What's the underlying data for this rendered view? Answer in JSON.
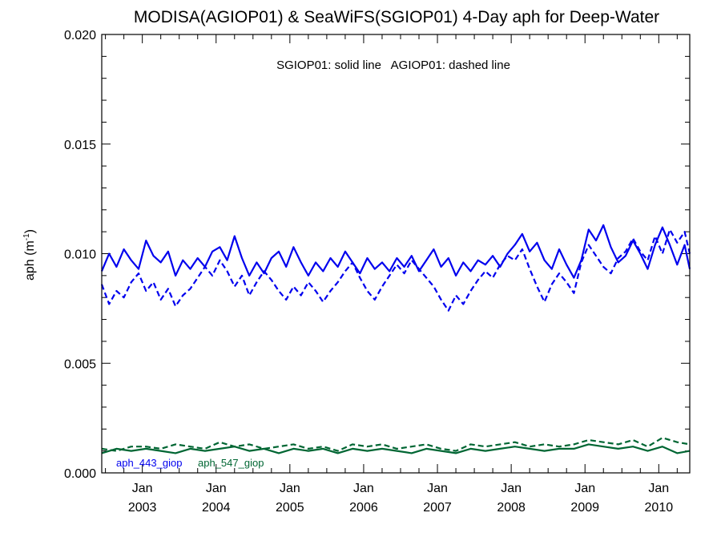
{
  "chart_data": {
    "type": "line",
    "title": "MODISA(AGIOP01) & SeaWiFS(SGIOP01) 4-Day aph for Deep-Water",
    "annotation": "SGIOP01: solid line   AGIOP01: dashed line",
    "ylabel": "aph (m",
    "ylabel_sup": "-1",
    "ylabel_close": ")",
    "xlim": [
      2002.45,
      2010.42
    ],
    "ylim": [
      0.0,
      0.02
    ],
    "yticks": [
      "0.000",
      "0.005",
      "0.010",
      "0.015",
      "0.020"
    ],
    "xticks": [
      {
        "month": "Jan",
        "year": "2003",
        "x": 2003.0
      },
      {
        "month": "Jan",
        "year": "2004",
        "x": 2004.0
      },
      {
        "month": "Jan",
        "year": "2005",
        "x": 2005.0
      },
      {
        "month": "Jan",
        "year": "2006",
        "x": 2006.0
      },
      {
        "month": "Jan",
        "year": "2007",
        "x": 2007.0
      },
      {
        "month": "Jan",
        "year": "2008",
        "x": 2008.0
      },
      {
        "month": "Jan",
        "year": "2009",
        "x": 2009.0
      },
      {
        "month": "Jan",
        "year": "2010",
        "x": 2010.0
      }
    ],
    "legend": [
      {
        "label": "aph_443_giop",
        "color": "#0000ee"
      },
      {
        "label": "aph_547_giop",
        "color": "#006633"
      }
    ],
    "series": [
      {
        "name": "aph_443_giop",
        "sensor": "SGIOP01",
        "style": "solid",
        "color": "#0000ee",
        "x": [
          2002.45,
          2002.55,
          2002.65,
          2002.75,
          2002.85,
          2002.95,
          2003.05,
          2003.15,
          2003.25,
          2003.35,
          2003.45,
          2003.55,
          2003.65,
          2003.75,
          2003.85,
          2003.95,
          2004.05,
          2004.15,
          2004.25,
          2004.35,
          2004.45,
          2004.55,
          2004.65,
          2004.75,
          2004.85,
          2004.95,
          2005.05,
          2005.15,
          2005.25,
          2005.35,
          2005.45,
          2005.55,
          2005.65,
          2005.75,
          2005.85,
          2005.95,
          2006.05,
          2006.15,
          2006.25,
          2006.35,
          2006.45,
          2006.55,
          2006.65,
          2006.75,
          2006.85,
          2006.95,
          2007.05,
          2007.15,
          2007.25,
          2007.35,
          2007.45,
          2007.55,
          2007.65,
          2007.75,
          2007.85,
          2007.95,
          2008.05,
          2008.15,
          2008.25,
          2008.35,
          2008.45,
          2008.55,
          2008.65,
          2008.75,
          2008.85,
          2008.95,
          2009.05,
          2009.15,
          2009.25,
          2009.35,
          2009.45,
          2009.55,
          2009.65,
          2009.75,
          2009.85,
          2009.95,
          2010.05,
          2010.15,
          2010.25,
          2010.35,
          2010.42
        ],
        "y": [
          0.0092,
          0.01,
          0.0094,
          0.0102,
          0.0097,
          0.0093,
          0.0106,
          0.0099,
          0.0096,
          0.0101,
          0.009,
          0.0097,
          0.0093,
          0.0098,
          0.0094,
          0.0101,
          0.0103,
          0.0097,
          0.0108,
          0.0098,
          0.009,
          0.0096,
          0.0091,
          0.0098,
          0.0101,
          0.0094,
          0.0103,
          0.0096,
          0.009,
          0.0096,
          0.0092,
          0.0098,
          0.0094,
          0.0101,
          0.0096,
          0.0091,
          0.0098,
          0.0093,
          0.0096,
          0.0092,
          0.0098,
          0.0094,
          0.0099,
          0.0092,
          0.0097,
          0.0102,
          0.0094,
          0.0098,
          0.009,
          0.0096,
          0.0092,
          0.0097,
          0.0095,
          0.0099,
          0.0094,
          0.01,
          0.0104,
          0.0109,
          0.0101,
          0.0105,
          0.0097,
          0.0093,
          0.0102,
          0.0095,
          0.0089,
          0.0097,
          0.0111,
          0.0106,
          0.0113,
          0.0103,
          0.0096,
          0.0099,
          0.0106,
          0.01,
          0.0093,
          0.0104,
          0.0112,
          0.0104,
          0.0095,
          0.0104,
          0.0093
        ]
      },
      {
        "name": "aph_443_giop",
        "sensor": "AGIOP01",
        "style": "dashed",
        "color": "#0000ee",
        "x": [
          2002.45,
          2002.55,
          2002.65,
          2002.75,
          2002.85,
          2002.95,
          2003.05,
          2003.15,
          2003.25,
          2003.35,
          2003.45,
          2003.55,
          2003.65,
          2003.75,
          2003.85,
          2003.95,
          2004.05,
          2004.15,
          2004.25,
          2004.35,
          2004.45,
          2004.55,
          2004.65,
          2004.75,
          2004.85,
          2004.95,
          2005.05,
          2005.15,
          2005.25,
          2005.35,
          2005.45,
          2005.55,
          2005.65,
          2005.75,
          2005.85,
          2005.95,
          2006.05,
          2006.15,
          2006.25,
          2006.35,
          2006.45,
          2006.55,
          2006.65,
          2006.75,
          2006.85,
          2006.95,
          2007.05,
          2007.15,
          2007.25,
          2007.35,
          2007.45,
          2007.55,
          2007.65,
          2007.75,
          2007.85,
          2007.95,
          2008.05,
          2008.15,
          2008.25,
          2008.35,
          2008.45,
          2008.55,
          2008.65,
          2008.75,
          2008.85,
          2008.95,
          2009.05,
          2009.15,
          2009.25,
          2009.35,
          2009.45,
          2009.55,
          2009.65,
          2009.75,
          2009.85,
          2009.95,
          2010.05,
          2010.15,
          2010.25,
          2010.35,
          2010.42
        ],
        "y": [
          0.0086,
          0.0077,
          0.0083,
          0.008,
          0.0087,
          0.0091,
          0.0083,
          0.0087,
          0.0079,
          0.0084,
          0.0076,
          0.0081,
          0.0084,
          0.0089,
          0.0094,
          0.009,
          0.0097,
          0.0092,
          0.0085,
          0.009,
          0.0081,
          0.0087,
          0.0092,
          0.0088,
          0.0083,
          0.0079,
          0.0085,
          0.0081,
          0.0087,
          0.0083,
          0.0078,
          0.0083,
          0.0087,
          0.0092,
          0.0096,
          0.0089,
          0.0083,
          0.0079,
          0.0085,
          0.009,
          0.0095,
          0.0091,
          0.0097,
          0.0093,
          0.0089,
          0.0085,
          0.0079,
          0.0074,
          0.0081,
          0.0077,
          0.0083,
          0.0088,
          0.0092,
          0.0089,
          0.0095,
          0.0099,
          0.0097,
          0.0102,
          0.0093,
          0.0085,
          0.0078,
          0.0086,
          0.0091,
          0.0087,
          0.0082,
          0.0096,
          0.0104,
          0.0099,
          0.0094,
          0.0091,
          0.0098,
          0.0101,
          0.0107,
          0.0101,
          0.0097,
          0.0108,
          0.01,
          0.0111,
          0.0105,
          0.011,
          0.01
        ]
      },
      {
        "name": "aph_547_giop",
        "sensor": "SGIOP01",
        "style": "solid",
        "color": "#006633",
        "x": [
          2002.45,
          2002.65,
          2002.85,
          2003.05,
          2003.25,
          2003.45,
          2003.65,
          2003.85,
          2004.05,
          2004.25,
          2004.45,
          2004.65,
          2004.85,
          2005.05,
          2005.25,
          2005.45,
          2005.65,
          2005.85,
          2006.05,
          2006.25,
          2006.45,
          2006.65,
          2006.85,
          2007.05,
          2007.25,
          2007.45,
          2007.65,
          2007.85,
          2008.05,
          2008.25,
          2008.45,
          2008.65,
          2008.85,
          2009.05,
          2009.25,
          2009.45,
          2009.65,
          2009.85,
          2010.05,
          2010.25,
          2010.42
        ],
        "y": [
          0.0009,
          0.0011,
          0.001,
          0.0011,
          0.001,
          0.0009,
          0.0011,
          0.001,
          0.0011,
          0.0012,
          0.001,
          0.0011,
          0.0009,
          0.0011,
          0.001,
          0.0011,
          0.0009,
          0.0011,
          0.001,
          0.0011,
          0.001,
          0.0009,
          0.0011,
          0.001,
          0.0009,
          0.0011,
          0.001,
          0.0011,
          0.0012,
          0.0011,
          0.001,
          0.0011,
          0.0011,
          0.0013,
          0.0012,
          0.0011,
          0.0012,
          0.001,
          0.0012,
          0.0009,
          0.001
        ]
      },
      {
        "name": "aph_547_giop",
        "sensor": "AGIOP01",
        "style": "dashed",
        "color": "#006633",
        "x": [
          2002.45,
          2002.65,
          2002.85,
          2003.05,
          2003.25,
          2003.45,
          2003.65,
          2003.85,
          2004.05,
          2004.25,
          2004.45,
          2004.65,
          2004.85,
          2005.05,
          2005.25,
          2005.45,
          2005.65,
          2005.85,
          2006.05,
          2006.25,
          2006.45,
          2006.65,
          2006.85,
          2007.05,
          2007.25,
          2007.45,
          2007.65,
          2007.85,
          2008.05,
          2008.25,
          2008.45,
          2008.65,
          2008.85,
          2009.05,
          2009.25,
          2009.45,
          2009.65,
          2009.85,
          2010.05,
          2010.25,
          2010.42
        ],
        "y": [
          0.0011,
          0.001,
          0.0012,
          0.0012,
          0.0011,
          0.0013,
          0.0012,
          0.0011,
          0.0014,
          0.0012,
          0.0013,
          0.0011,
          0.0012,
          0.0013,
          0.0011,
          0.0012,
          0.001,
          0.0013,
          0.0012,
          0.0013,
          0.0011,
          0.0012,
          0.0013,
          0.0011,
          0.001,
          0.0013,
          0.0012,
          0.0013,
          0.0014,
          0.0012,
          0.0013,
          0.0012,
          0.0013,
          0.0015,
          0.0014,
          0.0013,
          0.0015,
          0.0012,
          0.0016,
          0.0014,
          0.0013
        ]
      }
    ]
  }
}
